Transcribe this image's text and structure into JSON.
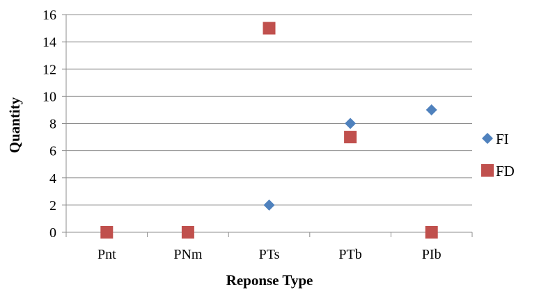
{
  "chart_data": {
    "type": "scatter",
    "title": "",
    "xlabel": "Reponse Type",
    "ylabel": "Quantity",
    "categories": [
      "Pnt",
      "PNm",
      "PTs",
      "PTb",
      "PIb"
    ],
    "ylim": [
      0,
      16
    ],
    "yticks": [
      "0",
      "2",
      "4",
      "6",
      "8",
      "10",
      "12",
      "14",
      "16"
    ],
    "grid": true,
    "legend_position": "right",
    "series": [
      {
        "name": "FI",
        "marker": "diamond",
        "color": "#4F81BD",
        "values": [
          null,
          null,
          2,
          8,
          9
        ]
      },
      {
        "name": "FD",
        "marker": "square",
        "color": "#C0504D",
        "values": [
          0,
          0,
          15,
          7,
          0
        ]
      }
    ]
  }
}
